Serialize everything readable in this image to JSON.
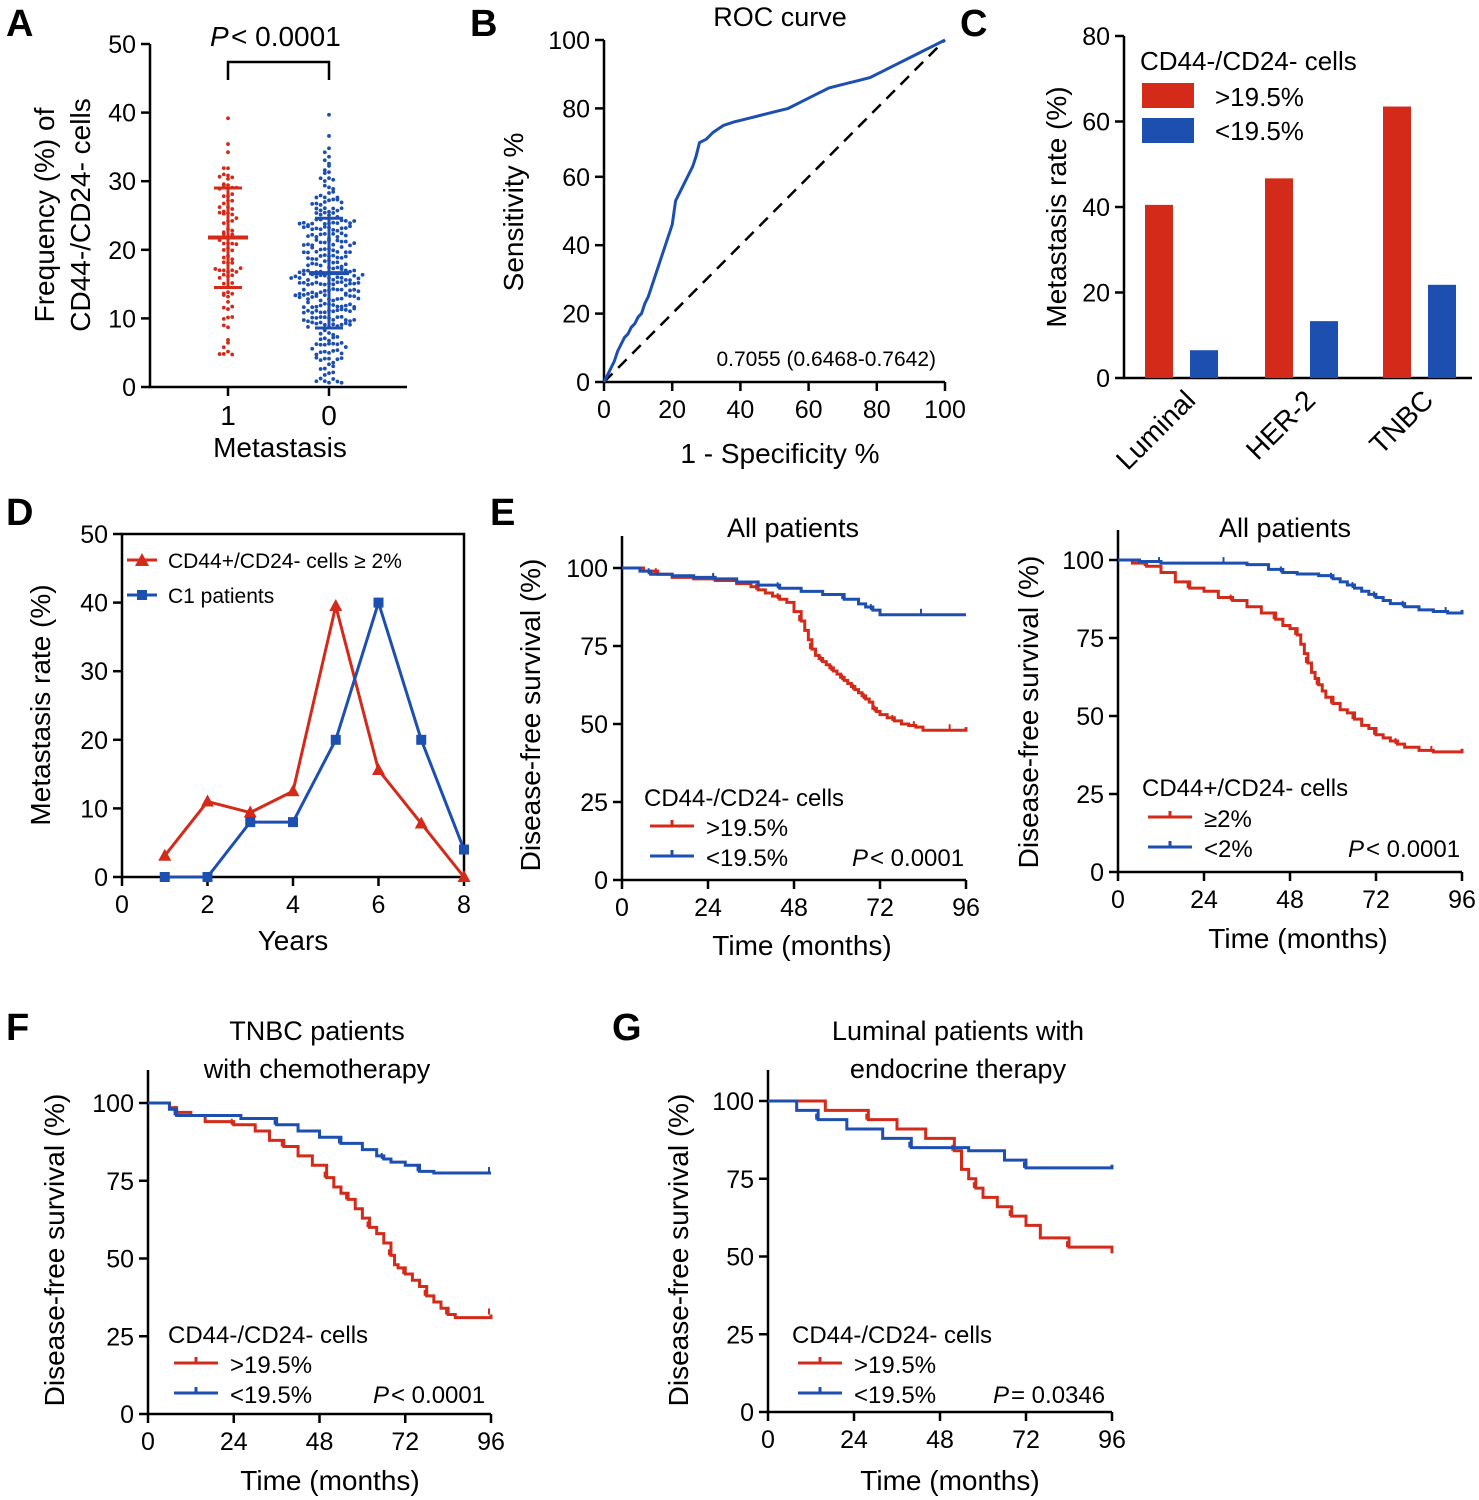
{
  "colors": {
    "red": "#d32a1a",
    "blue": "#1c4fb0"
  },
  "chart_data": [
    {
      "panel": "A",
      "type": "scatter",
      "title": "",
      "annotation_p": "P",
      "annotation_rest": " < 0.0001",
      "ylabel_line1": "Frequency (%) of",
      "ylabel_line2": "CD44-/CD24- cells",
      "xlabel": "Metastasis",
      "categories": [
        "1",
        "0"
      ],
      "yticks": [
        "0",
        "10",
        "20",
        "30",
        "40",
        "50"
      ],
      "ylim": [
        0,
        50
      ],
      "groups": [
        {
          "name": "1",
          "color": "red",
          "mean": 21.8,
          "sd_low": 14.5,
          "sd_high": 29,
          "n": 90,
          "min": 5,
          "max": 39
        },
        {
          "name": "0",
          "color": "blue",
          "mean": 16.6,
          "sd_low": 8.6,
          "sd_high": 24.6,
          "n": 300,
          "min": 0.5,
          "max": 41
        }
      ]
    },
    {
      "panel": "B",
      "type": "line",
      "title": "ROC curve",
      "xlabel": "1 - Specificity %",
      "ylabel": "Sensitivity %",
      "annotation": "0.7055 (0.6468-0.7642)",
      "xticks": [
        "0",
        "20",
        "40",
        "60",
        "80",
        "100"
      ],
      "yticks": [
        "0",
        "20",
        "40",
        "60",
        "80",
        "100"
      ],
      "xlim": [
        0,
        100
      ],
      "ylim": [
        0,
        100
      ],
      "x": [
        0,
        1,
        2,
        3,
        4,
        5,
        6,
        7,
        8,
        9,
        10,
        11,
        12,
        13,
        14,
        15,
        16,
        17,
        18,
        19,
        20,
        21,
        22,
        23,
        24,
        25,
        26,
        27,
        28,
        30,
        32,
        35,
        38,
        42,
        46,
        50,
        54,
        58,
        62,
        66,
        70,
        74,
        78,
        82,
        86,
        90,
        94,
        98,
        100
      ],
      "y": [
        0,
        2,
        4,
        6,
        9,
        11,
        13,
        14,
        16,
        17,
        19,
        20,
        23,
        25,
        28,
        31,
        34,
        37,
        40,
        43,
        46,
        53,
        55,
        57,
        59,
        61,
        63,
        66,
        70,
        71,
        73,
        75,
        76,
        77,
        78,
        79,
        80,
        82,
        84,
        86,
        87,
        88,
        89,
        91,
        93,
        95,
        97,
        99,
        100
      ]
    },
    {
      "panel": "C",
      "type": "bar",
      "ylabel": "Metastasis rate (%)",
      "categories": [
        "Luminal",
        "HER-2",
        "TNBC"
      ],
      "yticks": [
        "0",
        "20",
        "40",
        "60",
        "80"
      ],
      "ylim": [
        0,
        80
      ],
      "legend_title": "CD44-/CD24- cells",
      "series": [
        {
          "name": ">19.5%",
          "color": "red",
          "values": [
            40.5,
            46.7,
            63.5
          ]
        },
        {
          "name": "<19.5%",
          "color": "blue",
          "values": [
            6.5,
            13.3,
            21.8
          ]
        }
      ]
    },
    {
      "panel": "D",
      "type": "line",
      "xlabel": "Years",
      "ylabel": "Metastasis rate (%)",
      "xticks": [
        "0",
        "2",
        "4",
        "6",
        "8"
      ],
      "yticks": [
        "0",
        "10",
        "20",
        "30",
        "40",
        "50"
      ],
      "xlim": [
        0,
        8
      ],
      "ylim": [
        0,
        50
      ],
      "series": [
        {
          "name": "CD44+/CD24- cells ≥ 2%",
          "color": "red",
          "marker": "triangle",
          "x": [
            1,
            2,
            3,
            4,
            5,
            6,
            7,
            8
          ],
          "y": [
            3.1,
            11,
            9.4,
            12.5,
            39.5,
            15.6,
            7.8,
            0
          ]
        },
        {
          "name": "C1 patients",
          "color": "blue",
          "marker": "square",
          "x": [
            1,
            2,
            3,
            4,
            5,
            6,
            7,
            8
          ],
          "y": [
            0,
            0,
            8,
            8,
            20,
            40,
            20,
            4
          ]
        }
      ]
    },
    {
      "panel": "E",
      "type": "line",
      "subtype": "kaplan-meier",
      "title": "All patients",
      "xlabel": "Time (months)",
      "ylabel": "Disease-free survival (%)",
      "xticks": [
        "0",
        "24",
        "48",
        "72",
        "96"
      ],
      "yticks": [
        "0",
        "25",
        "50",
        "75",
        "100"
      ],
      "xlim": [
        0,
        96
      ],
      "ylim": [
        0,
        100
      ],
      "legend_title": "CD44-/CD24- cells",
      "p_label": "P",
      "p_rest": " < 0.0001",
      "series": [
        {
          "name": ">19.5%",
          "color": "red",
          "x": [
            0,
            6,
            10,
            14,
            20,
            26,
            32,
            36,
            38,
            40,
            42,
            44,
            46,
            48,
            50,
            51,
            52,
            53,
            54,
            55,
            56,
            57,
            58,
            59,
            60,
            61,
            62,
            63,
            64,
            65,
            66,
            67,
            68,
            69,
            70,
            71,
            72,
            74,
            76,
            78,
            80,
            82,
            84,
            88,
            92,
            96
          ],
          "y": [
            100,
            99,
            98,
            97,
            96.5,
            96,
            95,
            94,
            93,
            92,
            91,
            90,
            89,
            86,
            83,
            80,
            77,
            74,
            72,
            71,
            70,
            69,
            68,
            67,
            66,
            65,
            64,
            63,
            62,
            61,
            60,
            59,
            58,
            57,
            55,
            54,
            53,
            52,
            51,
            50,
            49.5,
            49,
            48,
            48,
            48,
            49
          ]
        },
        {
          "name": "<19.5%",
          "color": "blue",
          "x": [
            0,
            5,
            8,
            14,
            20,
            26,
            32,
            38,
            44,
            50,
            56,
            62,
            66,
            68,
            70,
            72,
            78,
            84,
            90,
            96
          ],
          "y": [
            100,
            99,
            98,
            97.5,
            97,
            96.5,
            95.5,
            94.5,
            93.5,
            92.5,
            91.5,
            90,
            88.5,
            87.5,
            86.5,
            85,
            85,
            85,
            85,
            85
          ]
        }
      ]
    },
    {
      "panel": "E2",
      "type": "line",
      "subtype": "kaplan-meier",
      "title": "All patients",
      "xlabel": "Time (months)",
      "ylabel": "Disease-free survival (%)",
      "xticks": [
        "0",
        "24",
        "48",
        "72",
        "96"
      ],
      "yticks": [
        "0",
        "25",
        "50",
        "75",
        "100"
      ],
      "xlim": [
        0,
        96
      ],
      "ylim": [
        0,
        100
      ],
      "legend_title": "CD44+/CD24- cells",
      "p_label": "P",
      "p_rest": " < 0.0001",
      "series": [
        {
          "name": "≥2%",
          "color": "red",
          "x": [
            0,
            4,
            8,
            12,
            16,
            20,
            24,
            28,
            32,
            36,
            40,
            44,
            46,
            48,
            50,
            51,
            52,
            53,
            54,
            55,
            56,
            57,
            58,
            60,
            62,
            64,
            66,
            68,
            70,
            72,
            74,
            76,
            78,
            80,
            84,
            88,
            92,
            96
          ],
          "y": [
            100,
            99,
            98,
            96,
            93,
            91,
            90,
            88,
            87,
            85,
            83,
            81,
            79,
            78,
            76,
            73,
            70,
            67,
            64,
            62,
            60,
            58,
            56,
            54,
            52,
            51,
            49,
            47,
            46,
            44,
            43,
            42,
            41,
            40,
            39,
            38.5,
            38.5,
            39.5
          ]
        },
        {
          "name": "<2%",
          "color": "blue",
          "x": [
            0,
            6,
            12,
            18,
            24,
            30,
            36,
            42,
            46,
            50,
            56,
            60,
            62,
            64,
            66,
            68,
            70,
            72,
            74,
            76,
            80,
            84,
            88,
            92,
            96
          ],
          "y": [
            100,
            99.5,
            99,
            99,
            99,
            99,
            98.5,
            97,
            96,
            95.5,
            95,
            94,
            93,
            92,
            91,
            90,
            89,
            88,
            87,
            86,
            85,
            84,
            83.5,
            83,
            84
          ]
        }
      ]
    },
    {
      "panel": "F",
      "type": "line",
      "subtype": "kaplan-meier",
      "title_line1": "TNBC patients",
      "title_line2": "with chemotherapy",
      "xlabel": "Time (months)",
      "ylabel": "Disease-free survival (%)",
      "xticks": [
        "0",
        "24",
        "48",
        "72",
        "96"
      ],
      "yticks": [
        "0",
        "25",
        "50",
        "75",
        "100"
      ],
      "xlim": [
        0,
        96
      ],
      "ylim": [
        0,
        100
      ],
      "legend_title": "CD44-/CD24- cells",
      "p_label": "P",
      "p_rest": " < 0.0001",
      "series": [
        {
          "name": ">19.5%",
          "color": "red",
          "x": [
            0,
            6,
            8,
            12,
            16,
            24,
            30,
            34,
            38,
            42,
            46,
            50,
            52,
            54,
            56,
            58,
            60,
            62,
            64,
            66,
            68,
            69,
            70,
            72,
            74,
            76,
            78,
            80,
            82,
            84,
            86,
            90,
            96
          ],
          "y": [
            100,
            98.5,
            97,
            96,
            94,
            93,
            91,
            88,
            86,
            83,
            80,
            76,
            73,
            71,
            69,
            66,
            63,
            60,
            58,
            55,
            51,
            48,
            47,
            45,
            43,
            41,
            38,
            36,
            34,
            32,
            31,
            31,
            32
          ]
        },
        {
          "name": "<19.5%",
          "color": "blue",
          "x": [
            0,
            6,
            8,
            14,
            26,
            36,
            42,
            48,
            54,
            60,
            64,
            66,
            68,
            72,
            76,
            80,
            86,
            96
          ],
          "y": [
            100,
            98,
            96,
            96,
            95,
            93,
            91,
            89,
            87,
            85,
            83,
            82,
            81,
            80,
            78,
            77.5,
            77.5,
            77.5
          ]
        }
      ]
    },
    {
      "panel": "G",
      "type": "line",
      "subtype": "kaplan-meier",
      "title_line1": "Luminal patients with",
      "title_line2": "endocrine therapy",
      "xlabel": "Time (months)",
      "ylabel": "Disease-free survival (%)",
      "xticks": [
        "0",
        "24",
        "48",
        "72",
        "96"
      ],
      "yticks": [
        "0",
        "25",
        "50",
        "75",
        "100"
      ],
      "xlim": [
        0,
        96
      ],
      "ylim": [
        0,
        100
      ],
      "legend_title": "CD44-/CD24- cells",
      "p_label": "P",
      "p_rest": " = 0.0346",
      "series": [
        {
          "name": ">19.5%",
          "color": "red",
          "x": [
            0,
            16,
            28,
            36,
            44,
            52,
            54,
            56,
            58,
            60,
            64,
            68,
            72,
            76,
            84,
            96
          ],
          "y": [
            100,
            97,
            94,
            91,
            88,
            84,
            78,
            75,
            72,
            69,
            66,
            63,
            60,
            56,
            53,
            51
          ]
        },
        {
          "name": "<19.5%",
          "color": "blue",
          "x": [
            0,
            8,
            14,
            22,
            32,
            40,
            56,
            66,
            72,
            96
          ],
          "y": [
            100,
            97,
            94,
            91,
            88,
            85,
            84,
            81,
            78.5,
            79.5
          ]
        }
      ]
    }
  ]
}
